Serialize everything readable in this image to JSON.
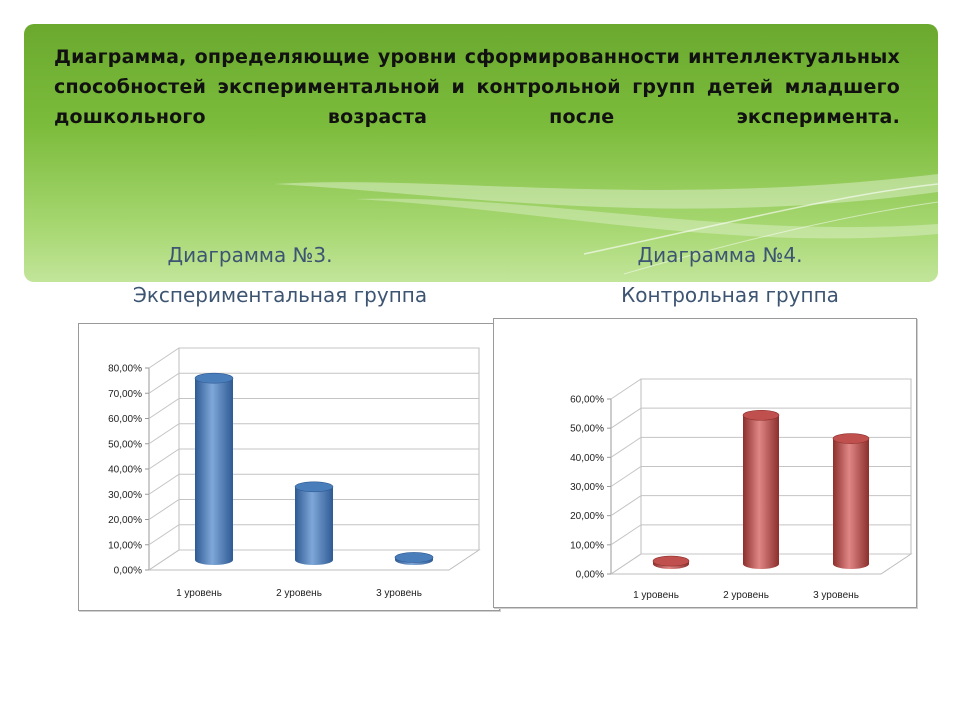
{
  "slide": {
    "title": "Диаграмма, определяющие уровни сформированности интеллектуальных способностей экспериментальной и контрольной групп детей младшего дошкольного возраста после эксперимента.",
    "left_caption_1": "Диаграмма №3.",
    "left_caption_2": "Экспериментальная группа",
    "right_caption_1": "Диаграмма №4.",
    "right_caption_2": "Контрольная группа"
  },
  "chart_data": [
    {
      "type": "bar",
      "categories": [
        "1 уровень",
        "2 уровень",
        "3 уровень"
      ],
      "values": [
        72,
        29,
        1
      ],
      "yticks": [
        "0,00%",
        "10,00%",
        "20,00%",
        "30,00%",
        "40,00%",
        "50,00%",
        "60,00%",
        "70,00%",
        "80,00%"
      ],
      "ylim": [
        0,
        80
      ],
      "grid": true,
      "bar_color": "#4a7ebb",
      "bar_color_dark": "#2e5a94",
      "bar_color_light": "#7fa7d8"
    },
    {
      "type": "bar",
      "categories": [
        "1 уровень",
        "2 уровень",
        "3 уровень"
      ],
      "values": [
        1,
        51,
        43
      ],
      "yticks": [
        "0,00%",
        "10,00%",
        "20,00%",
        "30,00%",
        "40,00%",
        "50,00%",
        "60,00%"
      ],
      "ylim": [
        0,
        60
      ],
      "grid": true,
      "bar_color": "#c0504d",
      "bar_color_dark": "#8c2f2d",
      "bar_color_light": "#e08785"
    }
  ]
}
